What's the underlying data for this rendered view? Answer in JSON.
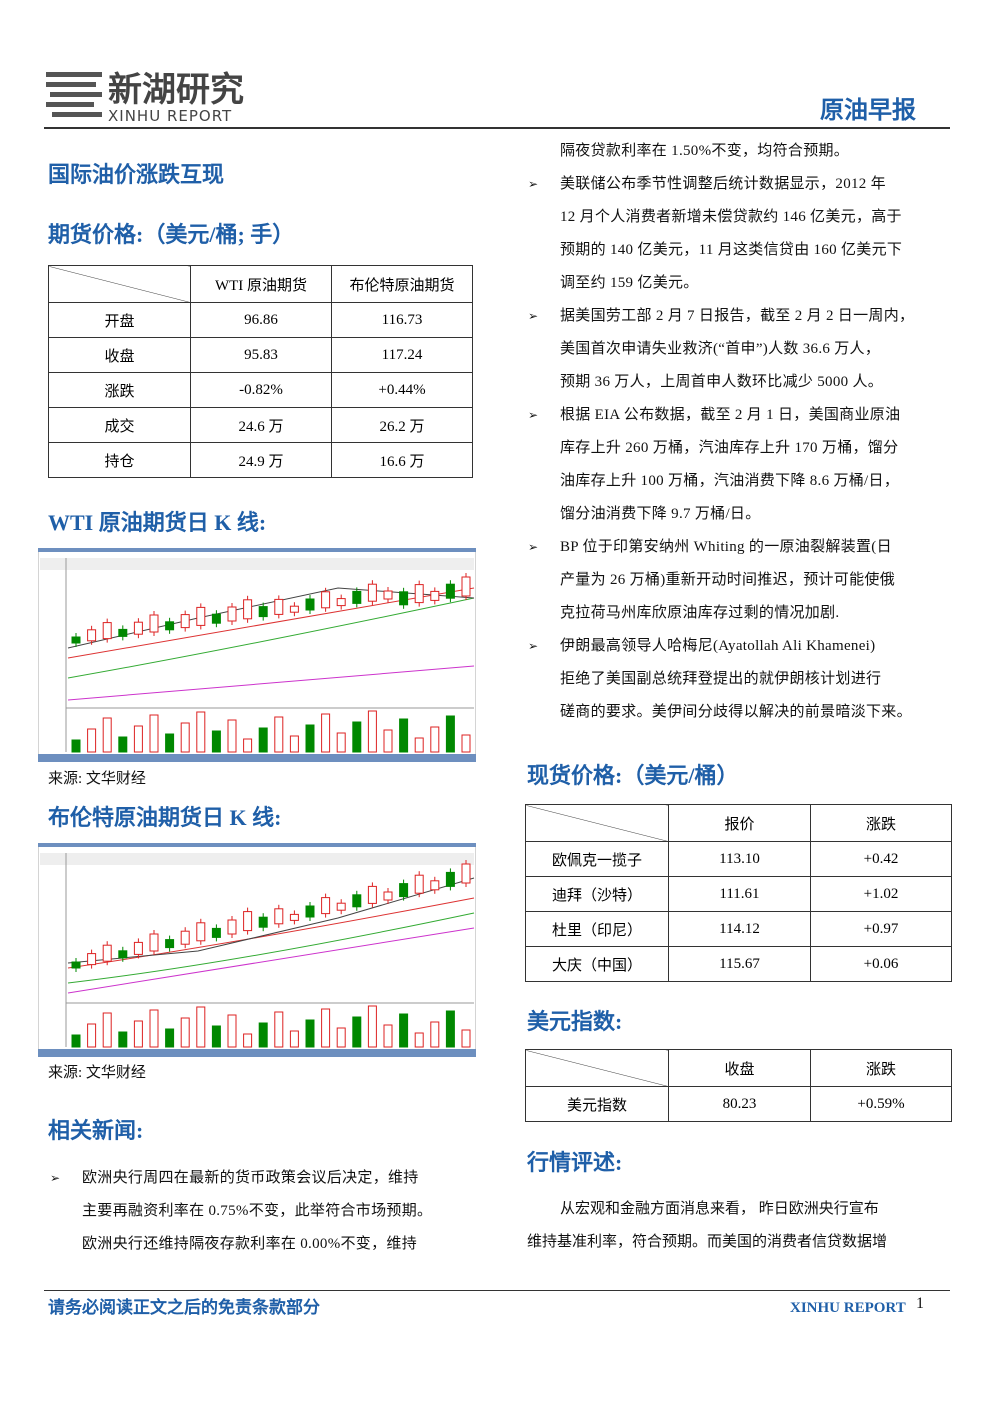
{
  "header": {
    "logo_cn": "新湖研究",
    "logo_en": "XINHU REPORT",
    "report_type": "原油早报"
  },
  "headline": "国际油价涨跌互现",
  "futures": {
    "title": "期货价格:（美元/桶; 手）",
    "headers": [
      "WTI 原油期货",
      "布伦特原油期货"
    ],
    "rows": [
      [
        "开盘",
        "96.86",
        "116.73"
      ],
      [
        "收盘",
        "95.83",
        "117.24"
      ],
      [
        "涨跌",
        "-0.82%",
        "+0.44%"
      ],
      [
        "成交",
        "24.6 万",
        "26.2 万"
      ],
      [
        "持仓",
        "24.9 万",
        "16.6 万"
      ]
    ]
  },
  "wti_chart": {
    "title": "WTI 原油期货日 K 线:",
    "source": "来源: 文华财经"
  },
  "brent_chart": {
    "title": "布伦特原油期货日 K 线:",
    "source": "来源: 文华财经"
  },
  "news": {
    "title": "相关新闻:",
    "items": [
      {
        "lines": [
          "欧洲央行周四在最新的货币政策会议后决定，维持",
          "主要再融资利率在 0.75%不变，此举符合市场预期。",
          "欧洲央行还维持隔夜存款利率在 0.00%不变，维持",
          "隔夜贷款利率在 1.50%不变，均符合预期。"
        ]
      },
      {
        "lines": [
          "美联储公布季节性调整后统计数据显示，2012 年",
          "12 月个人消费者新增未偿贷款约 146 亿美元，高于",
          "预期的 140 亿美元，11 月这类信贷由 160 亿美元下",
          "调至约 159 亿美元。"
        ]
      },
      {
        "lines": [
          "据美国劳工部 2 月 7 日报告，截至 2 月 2 日一周内，",
          "美国首次申请失业救济(“首申”)人数 36.6 万人，",
          "预期 36 万人，上周首申人数环比减少 5000 人。"
        ]
      },
      {
        "lines": [
          "根据 EIA 公布数据，截至 2 月 1 日，美国商业原油",
          "库存上升 260 万桶，汽油库存上升 170 万桶，馏分",
          "油库存上升 100 万桶，汽油消费下降 8.6 万桶/日，",
          "馏分油消费下降 9.7 万桶/日。"
        ]
      },
      {
        "lines": [
          "BP 位于印第安纳州 Whiting 的一原油裂解装置(日",
          "产量为 26 万桶)重新开动时间推迟，预计可能使俄",
          "克拉荷马州库欣原油库存过剩的情况加剧."
        ]
      },
      {
        "lines": [
          "伊朗最高领导人哈梅尼(Ayatollah Ali Khamenei)",
          "拒绝了美国副总统拜登提出的就伊朗核计划进行",
          "磋商的要求。美伊间分歧得以解决的前景暗淡下来。"
        ]
      }
    ]
  },
  "spot": {
    "title": "现货价格:（美元/桶）",
    "headers": [
      "报价",
      "涨跌"
    ],
    "rows": [
      [
        "欧佩克一揽子",
        "113.10",
        "+0.42"
      ],
      [
        "迪拜（沙特）",
        "111.61",
        "+1.02"
      ],
      [
        "杜里（印尼）",
        "114.12",
        "+0.97"
      ],
      [
        "大庆（中国）",
        "115.67",
        "+0.06"
      ]
    ]
  },
  "dollar": {
    "title": "美元指数:",
    "headers": [
      "收盘",
      "涨跌"
    ],
    "rows": [
      [
        "美元指数",
        "80.23",
        "+0.59%"
      ]
    ]
  },
  "commentary": {
    "title": "行情评述:",
    "lines": [
      "从宏观和金融方面消息来看， 昨日欧洲央行宣布",
      "维持基准利率，符合预期。而美国的消费者信贷数据增"
    ]
  },
  "footer": {
    "disclaimer": "请务必阅读正文之后的免责条款部分",
    "brand": "XINHU REPORT",
    "page": "1"
  }
}
